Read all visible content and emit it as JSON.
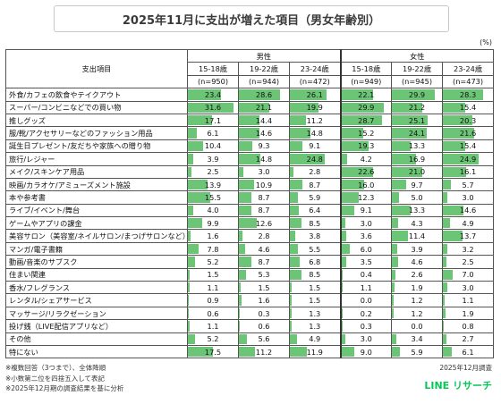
{
  "title": "2025年11月に支出が増えた項目（男女年齢別）",
  "unit": "(%)",
  "header": {
    "item_label": "支出項目",
    "male": "男性",
    "female": "女性",
    "groups": [
      {
        "age": "15-18歳",
        "n": "(n=950)"
      },
      {
        "age": "19-22歳",
        "n": "(n=944)"
      },
      {
        "age": "23-24歳",
        "n": "(n=472)"
      },
      {
        "age": "15-18歳",
        "n": "(n=949)"
      },
      {
        "age": "19-22歳",
        "n": "(n=945)"
      },
      {
        "age": "23-24歳",
        "n": "(n=473)"
      }
    ]
  },
  "chart_data": {
    "type": "table",
    "bar_scale_max": 35,
    "bar_color": "#6cc576",
    "rows": [
      {
        "label": "外食/カフェの飲食やテイクアウト",
        "values": [
          23.4,
          28.6,
          26.1,
          22.1,
          29.9,
          28.3
        ],
        "display": [
          "23.4",
          "28.6",
          "26.1",
          "22.1",
          "29.9",
          "28.3"
        ]
      },
      {
        "label": "スーパー/コンビニなどでの買い物",
        "values": [
          31.6,
          21.1,
          19.9,
          29.9,
          21.2,
          15.4
        ],
        "display": [
          "31.6",
          "21.1",
          "19.9",
          "29.9",
          "21.2",
          "15.4"
        ]
      },
      {
        "label": "推しグッズ",
        "values": [
          17.1,
          14.4,
          11.2,
          28.7,
          25.1,
          20.3
        ],
        "display": [
          "17.1",
          "14.4",
          "11.2",
          "28.7",
          "25.1",
          "20.3"
        ]
      },
      {
        "label": "服/靴/アクセサリーなどのファッション用品",
        "values": [
          6.1,
          14.6,
          14.8,
          15.2,
          24.1,
          21.6
        ],
        "display": [
          "6.1",
          "14.6",
          "14.8",
          "15.2",
          "24.1",
          "21.6"
        ]
      },
      {
        "label": "誕生日プレゼント/友だちや家族への贈り物",
        "values": [
          10.4,
          9.3,
          9.1,
          19.3,
          13.3,
          15.4
        ],
        "display": [
          "10.4",
          "9.3",
          "9.1",
          "19.3",
          "13.3",
          "15.4"
        ]
      },
      {
        "label": "旅行/レジャー",
        "values": [
          3.9,
          14.8,
          24.8,
          4.2,
          16.9,
          24.9
        ],
        "display": [
          "3.9",
          "14.8",
          "24.8",
          "4.2",
          "16.9",
          "24.9"
        ]
      },
      {
        "label": "メイク/スキンケア用品",
        "values": [
          2.5,
          3.0,
          2.8,
          22.6,
          21.0,
          16.1
        ],
        "display": [
          "2.5",
          "3.0",
          "2.8",
          "22.6",
          "21.0",
          "16.1"
        ]
      },
      {
        "label": "映画/カラオケ/アミューズメント施設",
        "values": [
          13.9,
          10.9,
          8.7,
          16.0,
          9.7,
          5.7
        ],
        "display": [
          "13.9",
          "10.9",
          "8.7",
          "16.0",
          "9.7",
          "5.7"
        ]
      },
      {
        "label": "本や参考書",
        "values": [
          15.5,
          8.7,
          5.9,
          12.3,
          5.0,
          3.0
        ],
        "display": [
          "15.5",
          "8.7",
          "5.9",
          "12.3",
          "5.0",
          "3.0"
        ]
      },
      {
        "label": "ライブ/イベント/舞台",
        "values": [
          4.0,
          8.7,
          6.4,
          9.1,
          13.3,
          14.6
        ],
        "display": [
          "4.0",
          "8.7",
          "6.4",
          "9.1",
          "13.3",
          "14.6"
        ]
      },
      {
        "label": "ゲームやアプリの課金",
        "values": [
          9.9,
          12.6,
          8.5,
          3.0,
          4.3,
          4.9
        ],
        "display": [
          "9.9",
          "12.6",
          "8.5",
          "3.0",
          "4.3",
          "4.9"
        ]
      },
      {
        "label": "美容サロン（美容室/ネイルサロン/まつげサロンなど）",
        "values": [
          1.6,
          2.8,
          3.8,
          3.6,
          11.4,
          13.7
        ],
        "display": [
          "1.6",
          "2.8",
          "3.8",
          "3.6",
          "11.4",
          "13.7"
        ]
      },
      {
        "label": "マンガ/電子書籍",
        "values": [
          7.8,
          4.6,
          5.5,
          6.0,
          3.9,
          3.2
        ],
        "display": [
          "7.8",
          "4.6",
          "5.5",
          "6.0",
          "3.9",
          "3.2"
        ]
      },
      {
        "label": "動画/音楽のサブスク",
        "values": [
          5.2,
          8.7,
          6.8,
          3.5,
          4.6,
          2.5
        ],
        "display": [
          "5.2",
          "8.7",
          "6.8",
          "3.5",
          "4.6",
          "2.5"
        ]
      },
      {
        "label": "住まい関連",
        "values": [
          1.5,
          5.3,
          8.5,
          0.4,
          2.6,
          7.0
        ],
        "display": [
          "1.5",
          "5.3",
          "8.5",
          "0.4",
          "2.6",
          "7.0"
        ]
      },
      {
        "label": "香水/フレグランス",
        "values": [
          1.1,
          1.5,
          1.5,
          1.1,
          1.9,
          3.0
        ],
        "display": [
          "1.1",
          "1.5",
          "1.5",
          "1.1",
          "1.9",
          "3.0"
        ]
      },
      {
        "label": "レンタル/シェアサービス",
        "values": [
          0.9,
          1.6,
          1.5,
          0.0,
          1.2,
          1.1
        ],
        "display": [
          "0.9",
          "1.6",
          "1.5",
          "0.0",
          "1.2",
          "1.1"
        ]
      },
      {
        "label": "マッサージ/リラクゼーション",
        "values": [
          0.6,
          0.3,
          1.3,
          0.2,
          1.2,
          1.9
        ],
        "display": [
          "0.6",
          "0.3",
          "1.3",
          "0.2",
          "1.2",
          "1.9"
        ]
      },
      {
        "label": "投げ銭（LIVE配信アプリなど）",
        "values": [
          1.1,
          0.6,
          1.3,
          0.3,
          0.0,
          0.8
        ],
        "display": [
          "1.1",
          "0.6",
          "1.3",
          "0.3",
          "0.0",
          "0.8"
        ]
      },
      {
        "label": "その他",
        "values": [
          5.2,
          5.6,
          4.9,
          3.0,
          3.4,
          2.7
        ],
        "display": [
          "5.2",
          "5.6",
          "4.9",
          "3.0",
          "3.4",
          "2.7"
        ]
      },
      {
        "label": "特にない",
        "values": [
          17.5,
          11.2,
          11.9,
          9.0,
          5.9,
          6.1
        ],
        "display": [
          "17.5",
          "11.2",
          "11.9",
          "9.0",
          "5.9",
          "6.1"
        ]
      }
    ]
  },
  "notes": [
    "※複数回答（3つまで）、全体降順",
    "※小数第二位を四捨五入して表記",
    "※2025年12月期の調査結果を基に分析"
  ],
  "survey_date": "2025年12月調査",
  "logo_text": "LINE リサーチ"
}
